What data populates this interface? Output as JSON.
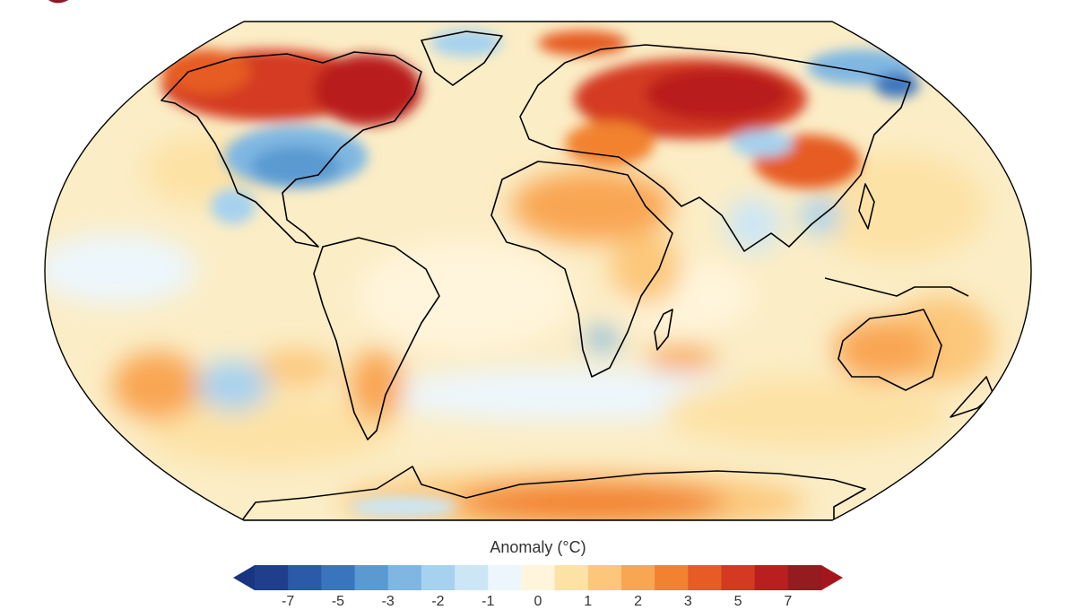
{
  "legend": {
    "title": "Anomaly (°C)",
    "colors": [
      "#1f3f8c",
      "#2a5aa8",
      "#3a74bd",
      "#5a9ad1",
      "#7fb7e2",
      "#a6d2ef",
      "#cce6f6",
      "#ecf6fc",
      "#fff5dc",
      "#fde2a6",
      "#fcc77a",
      "#f9a653",
      "#f2822f",
      "#e65c24",
      "#d43a22",
      "#b91f1f",
      "#941b1f"
    ],
    "arrow_low_color": "#1a3580",
    "arrow_high_color": "#a5161c",
    "tick_labels": [
      "-7",
      "-5",
      "-3",
      "-2",
      "-1",
      "0",
      "1",
      "2",
      "3",
      "5",
      "7"
    ]
  },
  "map": {
    "projection": "robinson",
    "ocean_base_color": "#fbedc6",
    "land_outline_color": "#000000"
  },
  "logo": {
    "color": "#8a1c2b"
  }
}
